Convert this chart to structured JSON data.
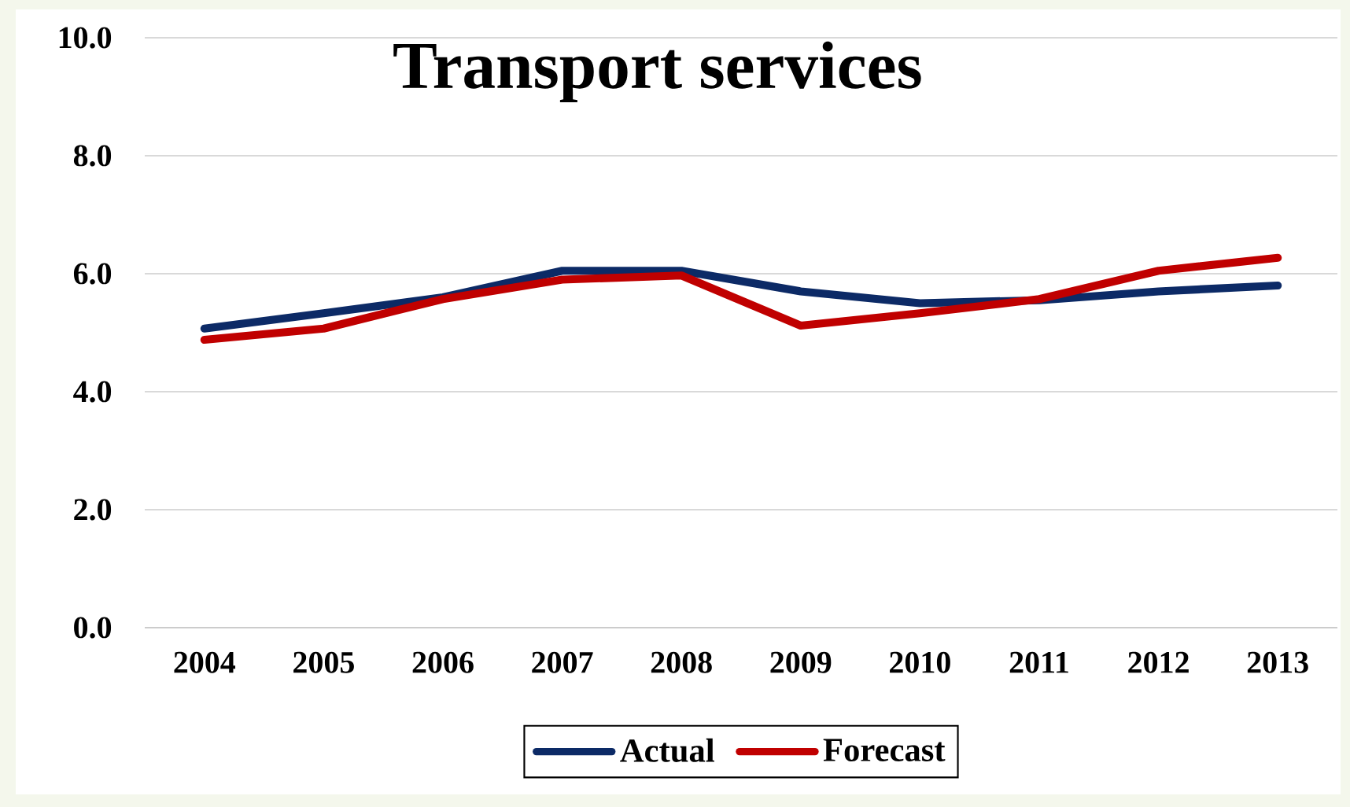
{
  "chart_data": {
    "type": "line",
    "title": "Transport services",
    "categories": [
      "2004",
      "2005",
      "2006",
      "2007",
      "2008",
      "2009",
      "2010",
      "2011",
      "2012",
      "2013"
    ],
    "series": [
      {
        "name": "Actual",
        "color": "#0c2a66",
        "values": [
          5.07,
          5.33,
          5.6,
          6.05,
          6.05,
          5.7,
          5.5,
          5.55,
          5.7,
          5.8
        ]
      },
      {
        "name": "Forecast",
        "color": "#c00000",
        "values": [
          4.88,
          5.07,
          5.57,
          5.9,
          5.97,
          5.12,
          5.33,
          5.57,
          6.05,
          6.27
        ]
      }
    ],
    "ylim": [
      0,
      10
    ],
    "yticks": [
      {
        "value": 0,
        "label": "0.0"
      },
      {
        "value": 2,
        "label": "2.0"
      },
      {
        "value": 4,
        "label": "4.0"
      },
      {
        "value": 6,
        "label": "6.0"
      },
      {
        "value": 8,
        "label": "8.0"
      },
      {
        "value": 10,
        "label": "10.0"
      }
    ],
    "grid": "y",
    "legend": "bottom",
    "marker": "none",
    "line_style": "solid"
  }
}
